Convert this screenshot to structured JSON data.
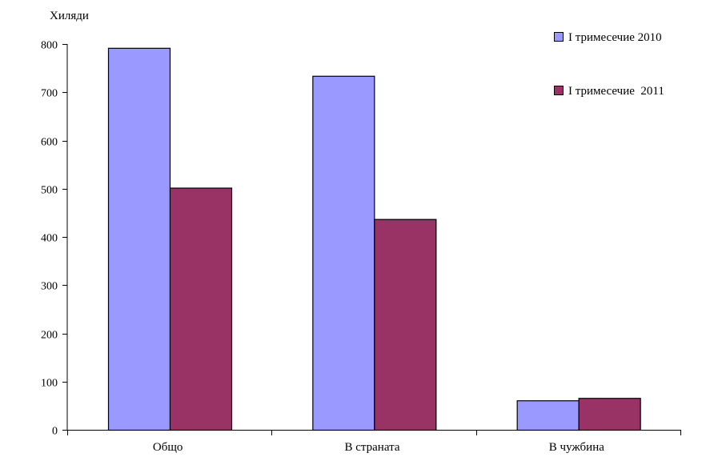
{
  "chart_data": {
    "type": "bar",
    "title": "",
    "ylabel": "Хиляди",
    "xlabel": "",
    "categories": [
      "Общо",
      "В страната",
      "В чужбина"
    ],
    "series": [
      {
        "name": "I тримесечие 2010",
        "values": [
          792,
          734,
          61
        ],
        "color": "#9999ff"
      },
      {
        "name": "I тримесечие  2011",
        "values": [
          502,
          437,
          66
        ],
        "color": "#993366"
      }
    ],
    "ylim": [
      0,
      800
    ],
    "yticks": [
      0,
      100,
      200,
      300,
      400,
      500,
      600,
      700,
      800
    ],
    "grid": false,
    "legend": "top-right"
  }
}
